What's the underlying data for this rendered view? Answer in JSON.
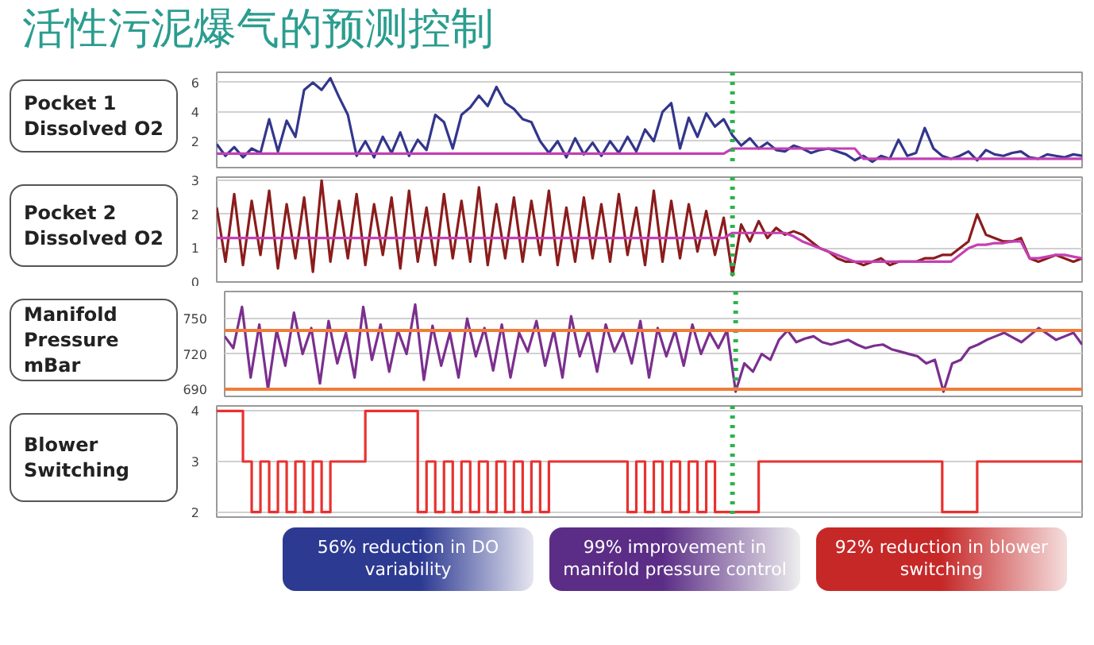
{
  "chart_data": [
    {
      "type": "line",
      "title": "活性污泥爆气的预测控制",
      "ylabel": "Pocket 1 Dissolved O2",
      "ylim": [
        0.2,
        6.7
      ],
      "yticks": [
        2,
        4,
        6
      ],
      "tick_labels": "y",
      "grid": "y",
      "categories": [
        null,
        null,
        null,
        null,
        null,
        null,
        null,
        null,
        null,
        null,
        null,
        null,
        null,
        null,
        null,
        null,
        null,
        null,
        null,
        null,
        null,
        null,
        null,
        null,
        null,
        null,
        null,
        null,
        null,
        null,
        null,
        null,
        null,
        null,
        null,
        null,
        null,
        null,
        null,
        null,
        null,
        null,
        null,
        null,
        null,
        null,
        null,
        null,
        null,
        null,
        null,
        null,
        null,
        null,
        null,
        null,
        null,
        null,
        null,
        null,
        null,
        null,
        null,
        null,
        null,
        null,
        null,
        null,
        null,
        null,
        null,
        null,
        null,
        null,
        null,
        null,
        null,
        null,
        null,
        null,
        null,
        null,
        null,
        null,
        null,
        null,
        null,
        null,
        null,
        null,
        null,
        null,
        null,
        null,
        null,
        null,
        null,
        null,
        null,
        null
      ],
      "series": [
        {
          "color": "#33368c",
          "values": [
            1.8,
            1.0,
            1.6,
            0.9,
            1.5,
            1.2,
            3.5,
            1.3,
            3.4,
            2.3,
            5.5,
            6.0,
            5.5,
            6.3,
            5.0,
            3.8,
            1.0,
            2.0,
            0.9,
            2.3,
            1.2,
            2.6,
            1.0,
            2.1,
            1.4,
            3.8,
            3.3,
            1.5,
            3.8,
            4.3,
            5.1,
            4.4,
            5.7,
            4.6,
            4.2,
            3.5,
            3.3,
            2.0,
            1.2,
            2.0,
            0.9,
            2.2,
            1.1,
            1.9,
            1.0,
            2.0,
            1.2,
            2.3,
            1.3,
            2.8,
            2.0,
            4.0,
            4.6,
            1.5,
            3.6,
            2.3,
            3.9,
            3.0,
            3.5,
            2.4,
            1.7,
            2.2,
            1.5,
            1.9,
            1.4,
            1.3,
            1.7,
            1.5,
            1.2,
            1.4,
            1.5,
            1.3,
            1.1,
            0.7,
            1.0,
            0.6,
            1.0,
            0.8,
            2.1,
            1.0,
            1.2,
            2.9,
            1.5,
            1.0,
            0.8,
            1.0,
            1.3,
            0.7,
            1.4,
            1.1,
            1.0,
            1.2,
            1.3,
            0.9,
            0.8,
            1.1,
            1.0,
            0.9,
            1.1,
            1.0
          ]
        },
        {
          "color": "#c43fb4",
          "values": [
            1.15,
            1.15,
            1.15,
            1.15,
            1.15,
            1.15,
            1.15,
            1.15,
            1.15,
            1.15,
            1.15,
            1.15,
            1.15,
            1.15,
            1.15,
            1.15,
            1.15,
            1.15,
            1.15,
            1.15,
            1.15,
            1.15,
            1.15,
            1.15,
            1.15,
            1.15,
            1.15,
            1.15,
            1.15,
            1.15,
            1.15,
            1.15,
            1.15,
            1.15,
            1.15,
            1.15,
            1.15,
            1.15,
            1.15,
            1.15,
            1.15,
            1.15,
            1.15,
            1.15,
            1.15,
            1.15,
            1.15,
            1.15,
            1.15,
            1.15,
            1.15,
            1.15,
            1.15,
            1.15,
            1.15,
            1.15,
            1.15,
            1.15,
            1.15,
            1.5,
            1.5,
            1.5,
            1.5,
            1.5,
            1.5,
            1.5,
            1.5,
            1.5,
            1.5,
            1.5,
            1.5,
            1.5,
            1.5,
            1.5,
            0.8,
            0.8,
            0.8,
            0.8,
            0.8,
            0.8,
            0.8,
            0.8,
            0.8,
            0.8,
            0.8,
            0.8,
            0.8,
            0.8,
            0.8,
            0.8,
            0.8,
            0.8,
            0.8,
            0.8,
            0.8,
            0.8,
            0.8,
            0.8,
            0.8,
            0.8
          ]
        }
      ]
    },
    {
      "type": "line",
      "ylabel": "Pocket 2 Dissolved O2",
      "ylim": [
        0,
        3.1
      ],
      "yticks": [
        0,
        1,
        2,
        3
      ],
      "tick_labels": "y",
      "grid": "y",
      "categories": [
        null,
        null,
        null,
        null,
        null,
        null,
        null,
        null,
        null,
        null,
        null,
        null,
        null,
        null,
        null,
        null,
        null,
        null,
        null,
        null,
        null,
        null,
        null,
        null,
        null,
        null,
        null,
        null,
        null,
        null,
        null,
        null,
        null,
        null,
        null,
        null,
        null,
        null,
        null,
        null,
        null,
        null,
        null,
        null,
        null,
        null,
        null,
        null,
        null,
        null,
        null,
        null,
        null,
        null,
        null,
        null,
        null,
        null,
        null,
        null,
        null,
        null,
        null,
        null,
        null,
        null,
        null,
        null,
        null,
        null,
        null,
        null,
        null,
        null,
        null,
        null,
        null,
        null,
        null,
        null,
        null,
        null,
        null,
        null,
        null,
        null,
        null,
        null,
        null,
        null,
        null,
        null,
        null,
        null,
        null,
        null,
        null,
        null,
        null,
        null
      ],
      "series": [
        {
          "color": "#8b1c1c",
          "values": [
            2.2,
            0.6,
            2.6,
            0.5,
            2.4,
            0.8,
            2.7,
            0.4,
            2.3,
            0.7,
            2.5,
            0.3,
            3.0,
            0.6,
            2.4,
            0.7,
            2.6,
            0.5,
            2.3,
            0.8,
            2.5,
            0.4,
            2.7,
            0.6,
            2.2,
            0.5,
            2.6,
            0.7,
            2.4,
            0.6,
            2.8,
            0.5,
            2.3,
            0.7,
            2.5,
            0.6,
            2.4,
            0.8,
            2.7,
            0.5,
            2.2,
            0.6,
            2.5,
            0.7,
            2.3,
            0.6,
            2.6,
            0.8,
            2.2,
            0.5,
            2.7,
            0.6,
            2.4,
            0.7,
            2.3,
            0.9,
            2.1,
            0.8,
            1.9,
            0.2,
            1.7,
            1.2,
            1.8,
            1.3,
            1.6,
            1.4,
            1.5,
            1.4,
            1.2,
            1.0,
            0.9,
            0.7,
            0.6,
            0.6,
            0.5,
            0.6,
            0.7,
            0.5,
            0.6,
            0.6,
            0.6,
            0.7,
            0.7,
            0.8,
            0.8,
            1.0,
            1.2,
            2.0,
            1.4,
            1.3,
            1.2,
            1.2,
            1.3,
            0.7,
            0.6,
            0.7,
            0.8,
            0.7,
            0.6,
            0.7
          ]
        },
        {
          "color": "#c43fb4",
          "values": [
            1.3,
            1.3,
            1.3,
            1.3,
            1.3,
            1.3,
            1.3,
            1.3,
            1.3,
            1.3,
            1.3,
            1.3,
            1.3,
            1.3,
            1.3,
            1.3,
            1.3,
            1.3,
            1.3,
            1.3,
            1.3,
            1.3,
            1.3,
            1.3,
            1.3,
            1.3,
            1.3,
            1.3,
            1.3,
            1.3,
            1.3,
            1.3,
            1.3,
            1.3,
            1.3,
            1.3,
            1.3,
            1.3,
            1.3,
            1.3,
            1.3,
            1.3,
            1.3,
            1.3,
            1.3,
            1.3,
            1.3,
            1.3,
            1.3,
            1.3,
            1.3,
            1.3,
            1.3,
            1.3,
            1.3,
            1.3,
            1.3,
            1.3,
            1.3,
            1.45,
            1.45,
            1.45,
            1.45,
            1.45,
            1.45,
            1.45,
            1.35,
            1.2,
            1.1,
            1.0,
            0.9,
            0.8,
            0.7,
            0.6,
            0.6,
            0.6,
            0.6,
            0.6,
            0.6,
            0.6,
            0.6,
            0.6,
            0.6,
            0.6,
            0.6,
            0.8,
            1.0,
            1.1,
            1.1,
            1.15,
            1.15,
            1.2,
            1.2,
            0.7,
            0.7,
            0.75,
            0.8,
            0.8,
            0.75,
            0.7
          ]
        }
      ]
    },
    {
      "type": "line",
      "ylabel": "Manifold Pressure mBar",
      "ylim": [
        684,
        773
      ],
      "yticks": [
        690,
        720,
        750
      ],
      "tick_labels": "y",
      "grid": "y",
      "categories": [
        null,
        null,
        null,
        null,
        null,
        null,
        null,
        null,
        null,
        null,
        null,
        null,
        null,
        null,
        null,
        null,
        null,
        null,
        null,
        null,
        null,
        null,
        null,
        null,
        null,
        null,
        null,
        null,
        null,
        null,
        null,
        null,
        null,
        null,
        null,
        null,
        null,
        null,
        null,
        null,
        null,
        null,
        null,
        null,
        null,
        null,
        null,
        null,
        null,
        null,
        null,
        null,
        null,
        null,
        null,
        null,
        null,
        null,
        null,
        null,
        null,
        null,
        null,
        null,
        null,
        null,
        null,
        null,
        null,
        null,
        null,
        null,
        null,
        null,
        null,
        null,
        null,
        null,
        null,
        null,
        null,
        null,
        null,
        null,
        null,
        null,
        null,
        null,
        null,
        null,
        null,
        null,
        null,
        null,
        null,
        null,
        null,
        null,
        null,
        null
      ],
      "ref_lines": [
        {
          "axis": "y",
          "value": 740,
          "color": "#f07c3a"
        },
        {
          "axis": "y",
          "value": 690,
          "color": "#f07c3a"
        }
      ],
      "series": [
        {
          "color": "#7b2f8e",
          "values": [
            735,
            725,
            760,
            700,
            745,
            690,
            740,
            710,
            755,
            720,
            742,
            695,
            748,
            712,
            738,
            700,
            760,
            715,
            745,
            705,
            740,
            720,
            762,
            698,
            744,
            710,
            738,
            700,
            750,
            718,
            742,
            706,
            745,
            700,
            738,
            722,
            748,
            710,
            740,
            700,
            752,
            718,
            740,
            705,
            745,
            722,
            738,
            712,
            748,
            700,
            742,
            718,
            740,
            710,
            745,
            720,
            738,
            725,
            740,
            688,
            712,
            705,
            720,
            715,
            732,
            740,
            730,
            733,
            735,
            730,
            728,
            730,
            732,
            728,
            725,
            727,
            728,
            724,
            722,
            720,
            718,
            712,
            715,
            688,
            712,
            715,
            725,
            728,
            732,
            735,
            738,
            734,
            730,
            736,
            742,
            737,
            732,
            735,
            738,
            728
          ]
        }
      ]
    },
    {
      "type": "step",
      "ylabel": "Blower Switching",
      "ylim": [
        1.9,
        4.1
      ],
      "yticks": [
        2,
        3,
        4
      ],
      "tick_labels": "y",
      "grid": "y",
      "categories": [
        null,
        null,
        null,
        null,
        null,
        null,
        null,
        null,
        null,
        null,
        null,
        null,
        null,
        null,
        null,
        null,
        null,
        null,
        null,
        null,
        null,
        null,
        null,
        null,
        null,
        null,
        null,
        null,
        null,
        null,
        null,
        null,
        null,
        null,
        null,
        null,
        null,
        null,
        null,
        null,
        null,
        null,
        null,
        null,
        null,
        null,
        null,
        null,
        null,
        null,
        null,
        null,
        null,
        null,
        null,
        null,
        null,
        null,
        null,
        null,
        null,
        null,
        null,
        null,
        null,
        null,
        null,
        null,
        null,
        null,
        null,
        null,
        null,
        null,
        null,
        null,
        null,
        null,
        null,
        null,
        null,
        null,
        null,
        null,
        null,
        null,
        null,
        null,
        null,
        null,
        null,
        null,
        null,
        null,
        null,
        null,
        null,
        null,
        null,
        null
      ],
      "annotations": [
        "56% reduction in DO variability",
        "99% improvement in manifold pressure control",
        "92% reduction in blower switching"
      ],
      "series": [
        {
          "color": "#e8312f",
          "values": [
            4,
            4,
            4,
            3,
            2,
            3,
            2,
            3,
            2,
            3,
            2,
            3,
            2,
            3,
            3,
            3,
            3,
            4,
            4,
            4,
            4,
            4,
            4,
            2,
            3,
            2,
            3,
            2,
            3,
            2,
            3,
            2,
            3,
            2,
            3,
            2,
            3,
            2,
            3,
            3,
            3,
            3,
            3,
            3,
            3,
            3,
            3,
            2,
            3,
            2,
            3,
            2,
            3,
            2,
            3,
            2,
            3,
            2,
            2,
            2,
            2,
            2,
            3,
            3,
            3,
            3,
            3,
            3,
            3,
            3,
            3,
            3,
            3,
            3,
            3,
            3,
            3,
            3,
            3,
            3,
            3,
            3,
            3,
            2,
            2,
            2,
            2,
            3,
            3,
            3,
            3,
            3,
            3,
            3,
            3,
            3,
            3,
            3,
            3,
            3
          ]
        }
      ]
    }
  ]
}
